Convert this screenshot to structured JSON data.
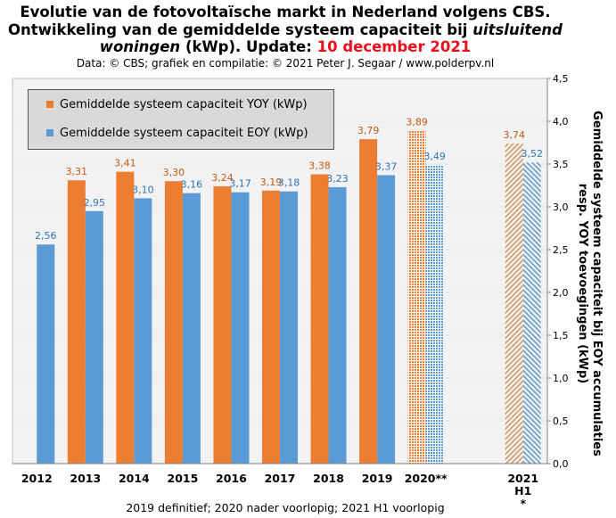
{
  "title": {
    "line1": "Evolutie van de fotovoltaïsche markt in Nederland volgens CBS.",
    "line2": "Ontwikkeling van de gemiddelde systeem capaciteit bij",
    "line2_italic": "uitsluitend",
    "line3_italic": "woningen",
    "line3_rest": "(kWp). Update:",
    "line3_date": "10 december 2021"
  },
  "source": "Data: © CBS; grafiek en compilatie: © 2021 Peter J. Segaar / www.polderpv.nl",
  "footnote": "2019 definitief; 2020 nader voorlopig; 2021 H1 voorlopig",
  "colors": {
    "yoy": "#ed7d31",
    "eoy": "#5b9bd5",
    "plot_bg": "#f2f2f2",
    "grid": "#e6e6e6",
    "legend_bg": "#d9d9d9"
  },
  "chart_data": {
    "type": "bar",
    "categories": [
      "2012",
      "2013",
      "2014",
      "2015",
      "2016",
      "2017",
      "2018",
      "2019",
      "2020**",
      "",
      "2021 H1 *"
    ],
    "series": [
      {
        "name": "Gemiddelde systeem capaciteit YOY (kWp)",
        "values": [
          null,
          3.31,
          3.41,
          3.3,
          3.24,
          3.19,
          3.38,
          3.79,
          3.89,
          null,
          3.74
        ],
        "labels": [
          "",
          "3,31",
          "3,41",
          "3,30",
          "3,24",
          "3,19",
          "3,38",
          "3,79",
          "3,89",
          "",
          "3,74"
        ]
      },
      {
        "name": "Gemiddelde systeem capaciteit EOY (kWp)",
        "values": [
          2.56,
          2.95,
          3.1,
          3.16,
          3.17,
          3.18,
          3.23,
          3.37,
          3.49,
          null,
          3.52
        ],
        "labels": [
          "2,56",
          "2,95",
          "3,10",
          "3,16",
          "3,17",
          "3,18",
          "3,23",
          "3,37",
          "3,49",
          "",
          "3,52"
        ]
      }
    ],
    "provisional_hatch": {
      "dotted": [
        "2020**"
      ],
      "striped": [
        "2021 H1 *"
      ]
    },
    "ylabel": "Gemiddelde systeem capaciteit bij EOY accumulaties resp. YOY toevoegingen (kWp)",
    "ylabel_line1": "Gemiddelde systeem capaciteit bij EOY accumulaties",
    "ylabel_line2": "resp. YOY toevoegingen (kWp)",
    "ylim": [
      0,
      4.5
    ],
    "yticks": [
      "0,0",
      "0,5",
      "1,0",
      "1,5",
      "2,0",
      "2,5",
      "3,0",
      "3,5",
      "4,0",
      "4,5"
    ],
    "y_axis_side": "right",
    "grid": true,
    "legend_placement": "top-left"
  }
}
